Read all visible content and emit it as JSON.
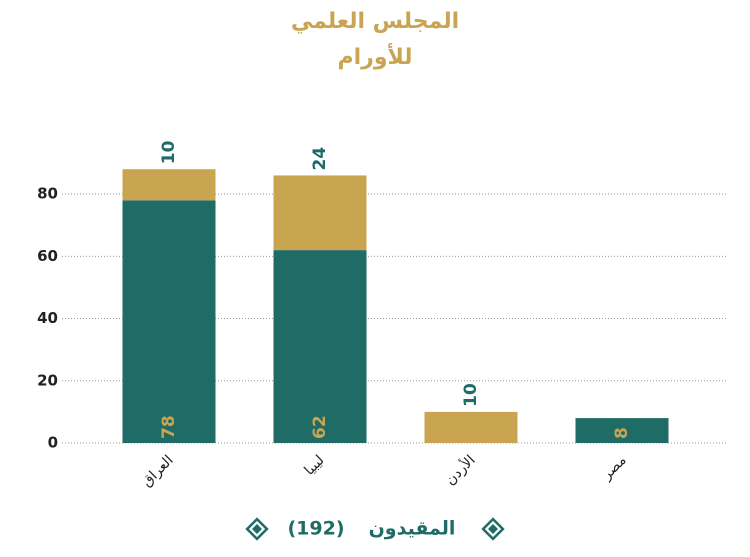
{
  "chart_data": {
    "type": "stacked_bar",
    "title": [
      "المجلس العلمي",
      "للأورام"
    ],
    "categories": [
      "العراق",
      "ليبيا",
      "الأردن",
      "مصر"
    ],
    "series": [
      {
        "color": "#1f6b66",
        "label_color": "#c9a552",
        "values": [
          78,
          62,
          null,
          8
        ]
      },
      {
        "color": "#c9a552",
        "label_color": "#1f6b66",
        "values": [
          10,
          24,
          10,
          null
        ]
      }
    ],
    "ylim": [
      0,
      90
    ],
    "yticks": [
      0,
      20,
      40,
      60,
      80
    ],
    "grid": true,
    "legend": {
      "label": "المقيدون",
      "total": {
        "value": 192,
        "label": "(192)"
      }
    }
  }
}
